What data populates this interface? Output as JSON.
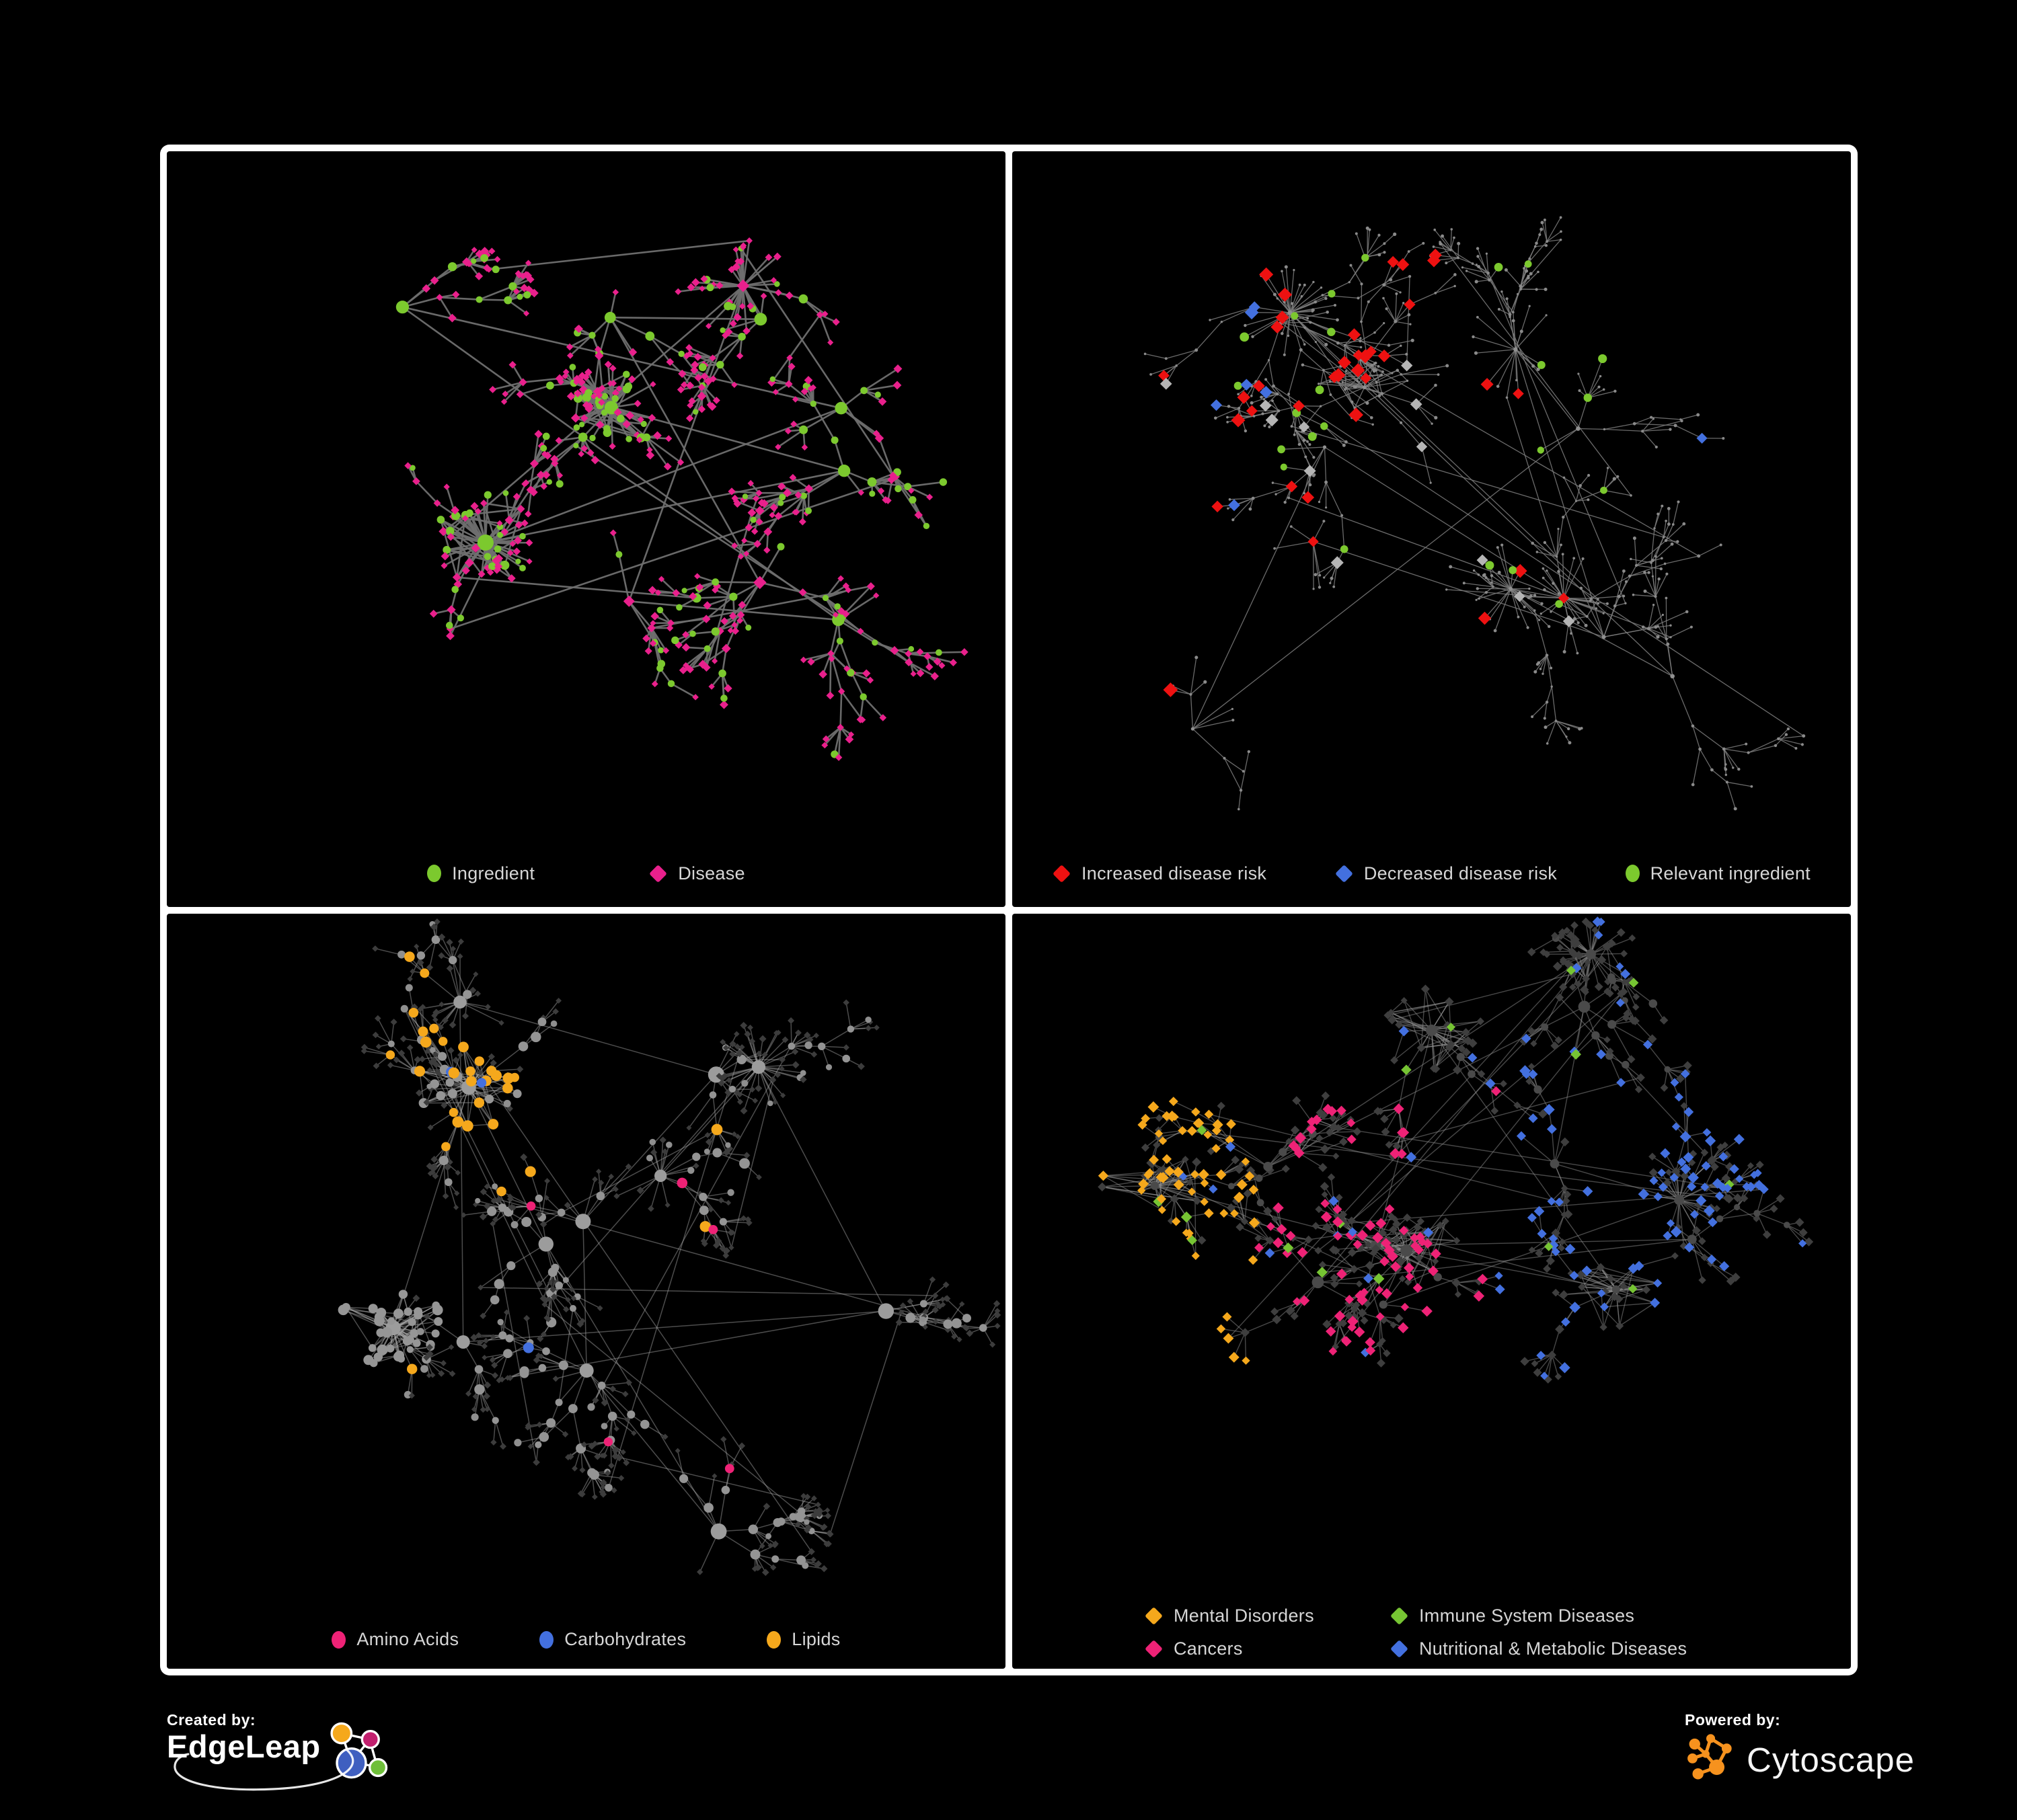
{
  "figure_type": "network-graph-grid",
  "colors": {
    "background": "#000000",
    "frame_border": "#ffffff",
    "legend_text": "#d6d6d6",
    "green": "#7cc92e",
    "magenta": "#e9208c",
    "pink": "#ee2276",
    "red": "#ee1111",
    "blue": "#4370df",
    "orange": "#f5a81c",
    "gray_node": "#9b9b9b",
    "dim_diamond": "#3c3c3c"
  },
  "footer": {
    "created_by_label": "Created by:",
    "created_by_brand": "EdgeLeap",
    "powered_by_label": "Powered by:",
    "powered_by_brand": "Cytoscape"
  },
  "panels": [
    {
      "name": "ingredient-disease-network",
      "legend": {
        "items": [
          {
            "label": "Ingredient",
            "shape": "circle",
            "color": "#7cc92e"
          },
          {
            "label": "Disease",
            "shape": "diamond",
            "color": "#e9208c"
          }
        ]
      },
      "edge": {
        "color": "#6f6f6f",
        "w": 2.6,
        "op": 0.95
      },
      "net": {
        "seed": 11,
        "clusters": 11,
        "fanP": 0.3,
        "branches": [
          3,
          4
        ],
        "depth": 4,
        "len": 52,
        "fork": 2,
        "endP": 0.32,
        "leafFanP": 0.5,
        "extraLinks": 14,
        "dense": [
          0,
          2
        ],
        "denseSize": [
          16,
          26
        ],
        "maxNodes": 520,
        "bottomPad": 120,
        "centers": {
          "0": [
            0.53,
            0.38
          ],
          "2": [
            0.38,
            0.58
          ]
        }
      },
      "paint": [
        {
          "role": "hub",
          "p": 0.75,
          "shape": "circle",
          "color": "#7cc92e",
          "size": [
            8,
            12
          ]
        },
        {
          "role": "hub",
          "p": 1,
          "shape": "diamond",
          "color": "#e9208c",
          "size": [
            8,
            11
          ]
        },
        {
          "role": "core",
          "p": 0.72,
          "shape": "circle",
          "color": "#7cc92e",
          "size": [
            4.5,
            7
          ]
        },
        {
          "role": "core",
          "p": 1,
          "shape": "diamond",
          "color": "#e9208c",
          "size": [
            5,
            7
          ]
        },
        {
          "role": "mid",
          "p": 0.42,
          "shape": "circle",
          "color": "#7cc92e",
          "size": [
            4.5,
            7
          ]
        },
        {
          "role": "mid",
          "p": 1,
          "shape": "diamond",
          "color": "#e9208c",
          "size": [
            5,
            7
          ]
        },
        {
          "role": "leaf",
          "p": 0.17,
          "shape": "circle",
          "color": "#7cc92e",
          "size": [
            4,
            6
          ]
        },
        {
          "role": "leaf",
          "p": 1,
          "shape": "diamond",
          "color": "#e9208c",
          "size": [
            4.5,
            6.5
          ]
        }
      ]
    },
    {
      "name": "disease-risk-network",
      "legend": {
        "items": [
          {
            "label": "Increased disease risk",
            "shape": "diamond",
            "color": "#ee1111"
          },
          {
            "label": "Decreased disease risk",
            "shape": "diamond",
            "color": "#4370df"
          },
          {
            "label": "Relevant ingredient",
            "shape": "circle",
            "color": "#7cc92e"
          }
        ]
      },
      "edge": {
        "color": "#7c7c7c",
        "w": 1.3,
        "op": 0.85
      },
      "net": {
        "seed": 23,
        "clusters": 13,
        "fanP": 0.3,
        "branches": [
          3,
          4
        ],
        "depth": 5,
        "len": 58,
        "fork": 2,
        "endP": 0.25,
        "leafFanP": 0.45,
        "extraLinks": 10,
        "dense": [
          1
        ],
        "denseSize": [
          14,
          20
        ],
        "maxNodes": 560,
        "bottomPad": 120,
        "centers": {
          "1": [
            0.42,
            0.35
          ]
        }
      },
      "paint": [
        {
          "role": "any",
          "p": 0.09,
          "region": [
            0.18,
            0.68,
            0.15,
            0.8
          ],
          "shape": "diamond",
          "color": "#ee1111",
          "size": [
            8,
            11
          ],
          "hl": 1
        },
        {
          "role": "any",
          "p": 0.05,
          "region": [
            0.05,
            0.32,
            0.2,
            0.55
          ],
          "shape": "diamond",
          "color": "#4370df",
          "size": [
            8,
            11
          ],
          "hl": 1
        },
        {
          "role": "mid",
          "p": 0.5,
          "region": [
            0.8,
            0.96,
            0.3,
            0.46
          ],
          "shape": "diamond",
          "color": "#4370df",
          "size": [
            8,
            10
          ],
          "hl": 1
        },
        {
          "role": "any",
          "p": 0.035,
          "region": [
            0.15,
            0.7,
            0.15,
            0.7
          ],
          "shape": "diamond",
          "color": "#b5b5b5",
          "size": [
            8,
            10
          ],
          "hl": 1
        },
        {
          "role": "any",
          "p": 0.09,
          "region": [
            0.1,
            0.72,
            0.1,
            0.68
          ],
          "shape": "circle",
          "color": "#7cc92e",
          "size": [
            5,
            7
          ],
          "hl": 1
        },
        {
          "role": "hub",
          "p": 1,
          "shape": "circle",
          "color": "#909090",
          "size": [
            2.5,
            3.5
          ]
        },
        {
          "role": "any",
          "p": 1,
          "shape": "circle",
          "color": "#8a8a8a",
          "size": [
            1.6,
            2.6
          ]
        }
      ]
    },
    {
      "name": "ingredient-class-network",
      "legend": {
        "items": [
          {
            "label": "Amino Acids",
            "shape": "circle",
            "color": "#ee2276"
          },
          {
            "label": "Carbohydrates",
            "shape": "circle",
            "color": "#4370df"
          },
          {
            "label": "Lipids",
            "shape": "circle",
            "color": "#f5a81c"
          }
        ]
      },
      "edge": {
        "color": "#a8a8a8",
        "w": 1.5,
        "op": 0.45
      },
      "net": {
        "seed": 37,
        "clusters": 12,
        "fanP": 0.35,
        "branches": [
          3,
          4
        ],
        "depth": 4,
        "len": 50,
        "fork": 2,
        "endP": 0.3,
        "leafFanP": 0.55,
        "extraLinks": 16,
        "dense": [
          0,
          1
        ],
        "denseSize": [
          22,
          34
        ],
        "maxNodes": 620,
        "bottomPad": 130,
        "centers": {
          "0": [
            0.27,
            0.62
          ],
          "1": [
            0.36,
            0.26
          ]
        }
      },
      "paint": [
        {
          "role": "hub",
          "p": 1,
          "shape": "circle",
          "color": "#9c9c9c",
          "size": [
            9,
            13
          ]
        },
        {
          "role": "core",
          "p": 0.5,
          "region": [
            0.22,
            0.54,
            0.02,
            0.45
          ],
          "shape": "circle",
          "color": "#f5a81c",
          "size": [
            6.5,
            8.5
          ],
          "hl": 1
        },
        {
          "role": "core",
          "p": 0.22,
          "region": [
            0.22,
            0.54,
            0.02,
            0.45
          ],
          "shape": "circle",
          "color": "#4370df",
          "size": [
            6.5,
            8.5
          ],
          "hl": 1
        },
        {
          "role": "mid",
          "p": 0.3,
          "region": [
            0.22,
            0.58,
            0.02,
            0.48
          ],
          "shape": "circle",
          "color": "#f5a81c",
          "size": [
            6.5,
            8.5
          ],
          "hl": 1
        },
        {
          "role": "mid",
          "p": 0.05,
          "shape": "circle",
          "color": "#f5a81c",
          "size": [
            6.5,
            8.5
          ],
          "hl": 1
        },
        {
          "role": "mid",
          "p": 0.07,
          "shape": "circle",
          "color": "#ee2276",
          "size": [
            6.5,
            8.5
          ],
          "hl": 1
        },
        {
          "role": "mid",
          "p": 0.02,
          "shape": "circle",
          "color": "#4370df",
          "size": [
            6.5,
            8.5
          ],
          "hl": 1
        },
        {
          "role": "core",
          "p": 1,
          "shape": "circle",
          "color": "#969696",
          "size": [
            5.5,
            8
          ]
        },
        {
          "role": "mid",
          "p": 1,
          "shape": "circle",
          "color": "#949494",
          "size": [
            5,
            8
          ]
        },
        {
          "role": "leaf",
          "p": 0.12,
          "shape": "circle",
          "color": "#8f8f8f",
          "size": [
            4,
            6
          ]
        },
        {
          "role": "leaf",
          "p": 1,
          "shape": "diamond",
          "color": "#3c3c3c",
          "size": [
            4,
            5.5
          ]
        }
      ]
    },
    {
      "name": "disease-class-network",
      "legend": {
        "items": [
          {
            "label": "Mental Disorders",
            "shape": "diamond",
            "color": "#f5a81c"
          },
          {
            "label": "Immune System Diseases",
            "shape": "diamond",
            "color": "#76c433"
          },
          {
            "label": "Cancers",
            "shape": "diamond",
            "color": "#ee2276"
          },
          {
            "label": "Nutritional & Metabolic Diseases",
            "shape": "diamond",
            "color": "#4370df"
          }
        ]
      },
      "edge": {
        "color": "#8e8e8e",
        "w": 1.4,
        "op": 0.5
      },
      "net": {
        "seed": 53,
        "clusters": 13,
        "fanP": 0.35,
        "branches": [
          3,
          4
        ],
        "depth": 4,
        "len": 50,
        "fork": 2,
        "endP": 0.3,
        "leafFanP": 0.55,
        "extraLinks": 16,
        "dense": [
          0,
          1,
          2,
          3
        ],
        "denseSize": [
          18,
          28
        ],
        "maxNodes": 660,
        "bottomPad": 160,
        "centers": {
          "0": [
            0.17,
            0.42
          ],
          "1": [
            0.47,
            0.52
          ],
          "2": [
            0.72,
            0.58
          ],
          "3": [
            0.5,
            0.18
          ]
        }
      },
      "paint": [
        {
          "role": "hub",
          "p": 1,
          "shape": "circle",
          "color": "#4a4a4a",
          "size": [
            6,
            9
          ]
        },
        {
          "role": "any",
          "p": 0.02,
          "shape": "diamond",
          "color": "#76c433",
          "size": [
            6.5,
            8.5
          ],
          "hl": 1
        },
        {
          "role": "any",
          "p": 0.05,
          "shape": "diamond",
          "color": "#4370df",
          "size": [
            6,
            8
          ],
          "hl": 1
        },
        {
          "role": "any",
          "p": 0.55,
          "region": [
            0.0,
            0.29,
            0.1,
            0.78
          ],
          "shape": "diamond",
          "color": "#f5a81c",
          "size": [
            6,
            8.5
          ],
          "hl": 1
        },
        {
          "role": "any",
          "p": 0.4,
          "region": [
            0.29,
            0.58,
            0.25,
            0.82
          ],
          "shape": "diamond",
          "color": "#ee2276",
          "size": [
            6,
            8.5
          ],
          "hl": 1
        },
        {
          "role": "any",
          "p": 0.38,
          "region": [
            0.58,
            0.97,
            0.2,
            0.82
          ],
          "shape": "diamond",
          "color": "#4370df",
          "size": [
            6,
            8.5
          ],
          "hl": 1
        },
        {
          "role": "mid",
          "p": 0.45,
          "shape": "circle",
          "color": "#4a4a4a",
          "size": [
            4.5,
            6.5
          ]
        },
        {
          "role": "any",
          "p": 1,
          "shape": "diamond",
          "color": "#3e3e3e",
          "size": [
            5,
            7
          ]
        }
      ]
    }
  ]
}
